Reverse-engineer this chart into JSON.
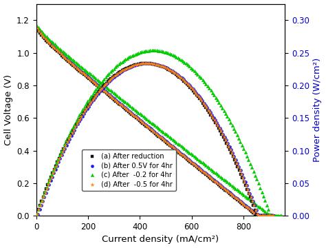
{
  "xlabel": "Current density (mA/cm²)",
  "ylabel_left": "Cell Voltage (V)",
  "ylabel_right": "Power density (W/cm²)",
  "xlim": [
    0,
    960
  ],
  "ylim_left": [
    0.0,
    1.3
  ],
  "ylim_right": [
    0.0,
    0.325
  ],
  "yticks_left": [
    0.0,
    0.2,
    0.4,
    0.6,
    0.8,
    1.0,
    1.2
  ],
  "yticks_right": [
    0.0,
    0.05,
    0.1,
    0.15,
    0.2,
    0.25,
    0.3
  ],
  "xticks": [
    0,
    200,
    400,
    600,
    800
  ],
  "legend_labels": [
    "(a) After reduction",
    "(b) After 0.5V for 4hr",
    "(c) After  -0.2 for 4hr",
    "(d) After  -0.5 for 4hr"
  ],
  "colors": [
    "#111111",
    "#1515ff",
    "#00cc00",
    "#ff8800"
  ],
  "markers_v": [
    "s",
    "o",
    "^",
    "*"
  ],
  "background_color": "#ffffff",
  "ylabel_right_color": "#0000cc",
  "V_oc_abd": 1.155,
  "V_oc_c": 1.175,
  "j_max_abd": 910,
  "j_max_c": 950,
  "power_scale_abd": 1.0,
  "power_scale_c": 1.0
}
